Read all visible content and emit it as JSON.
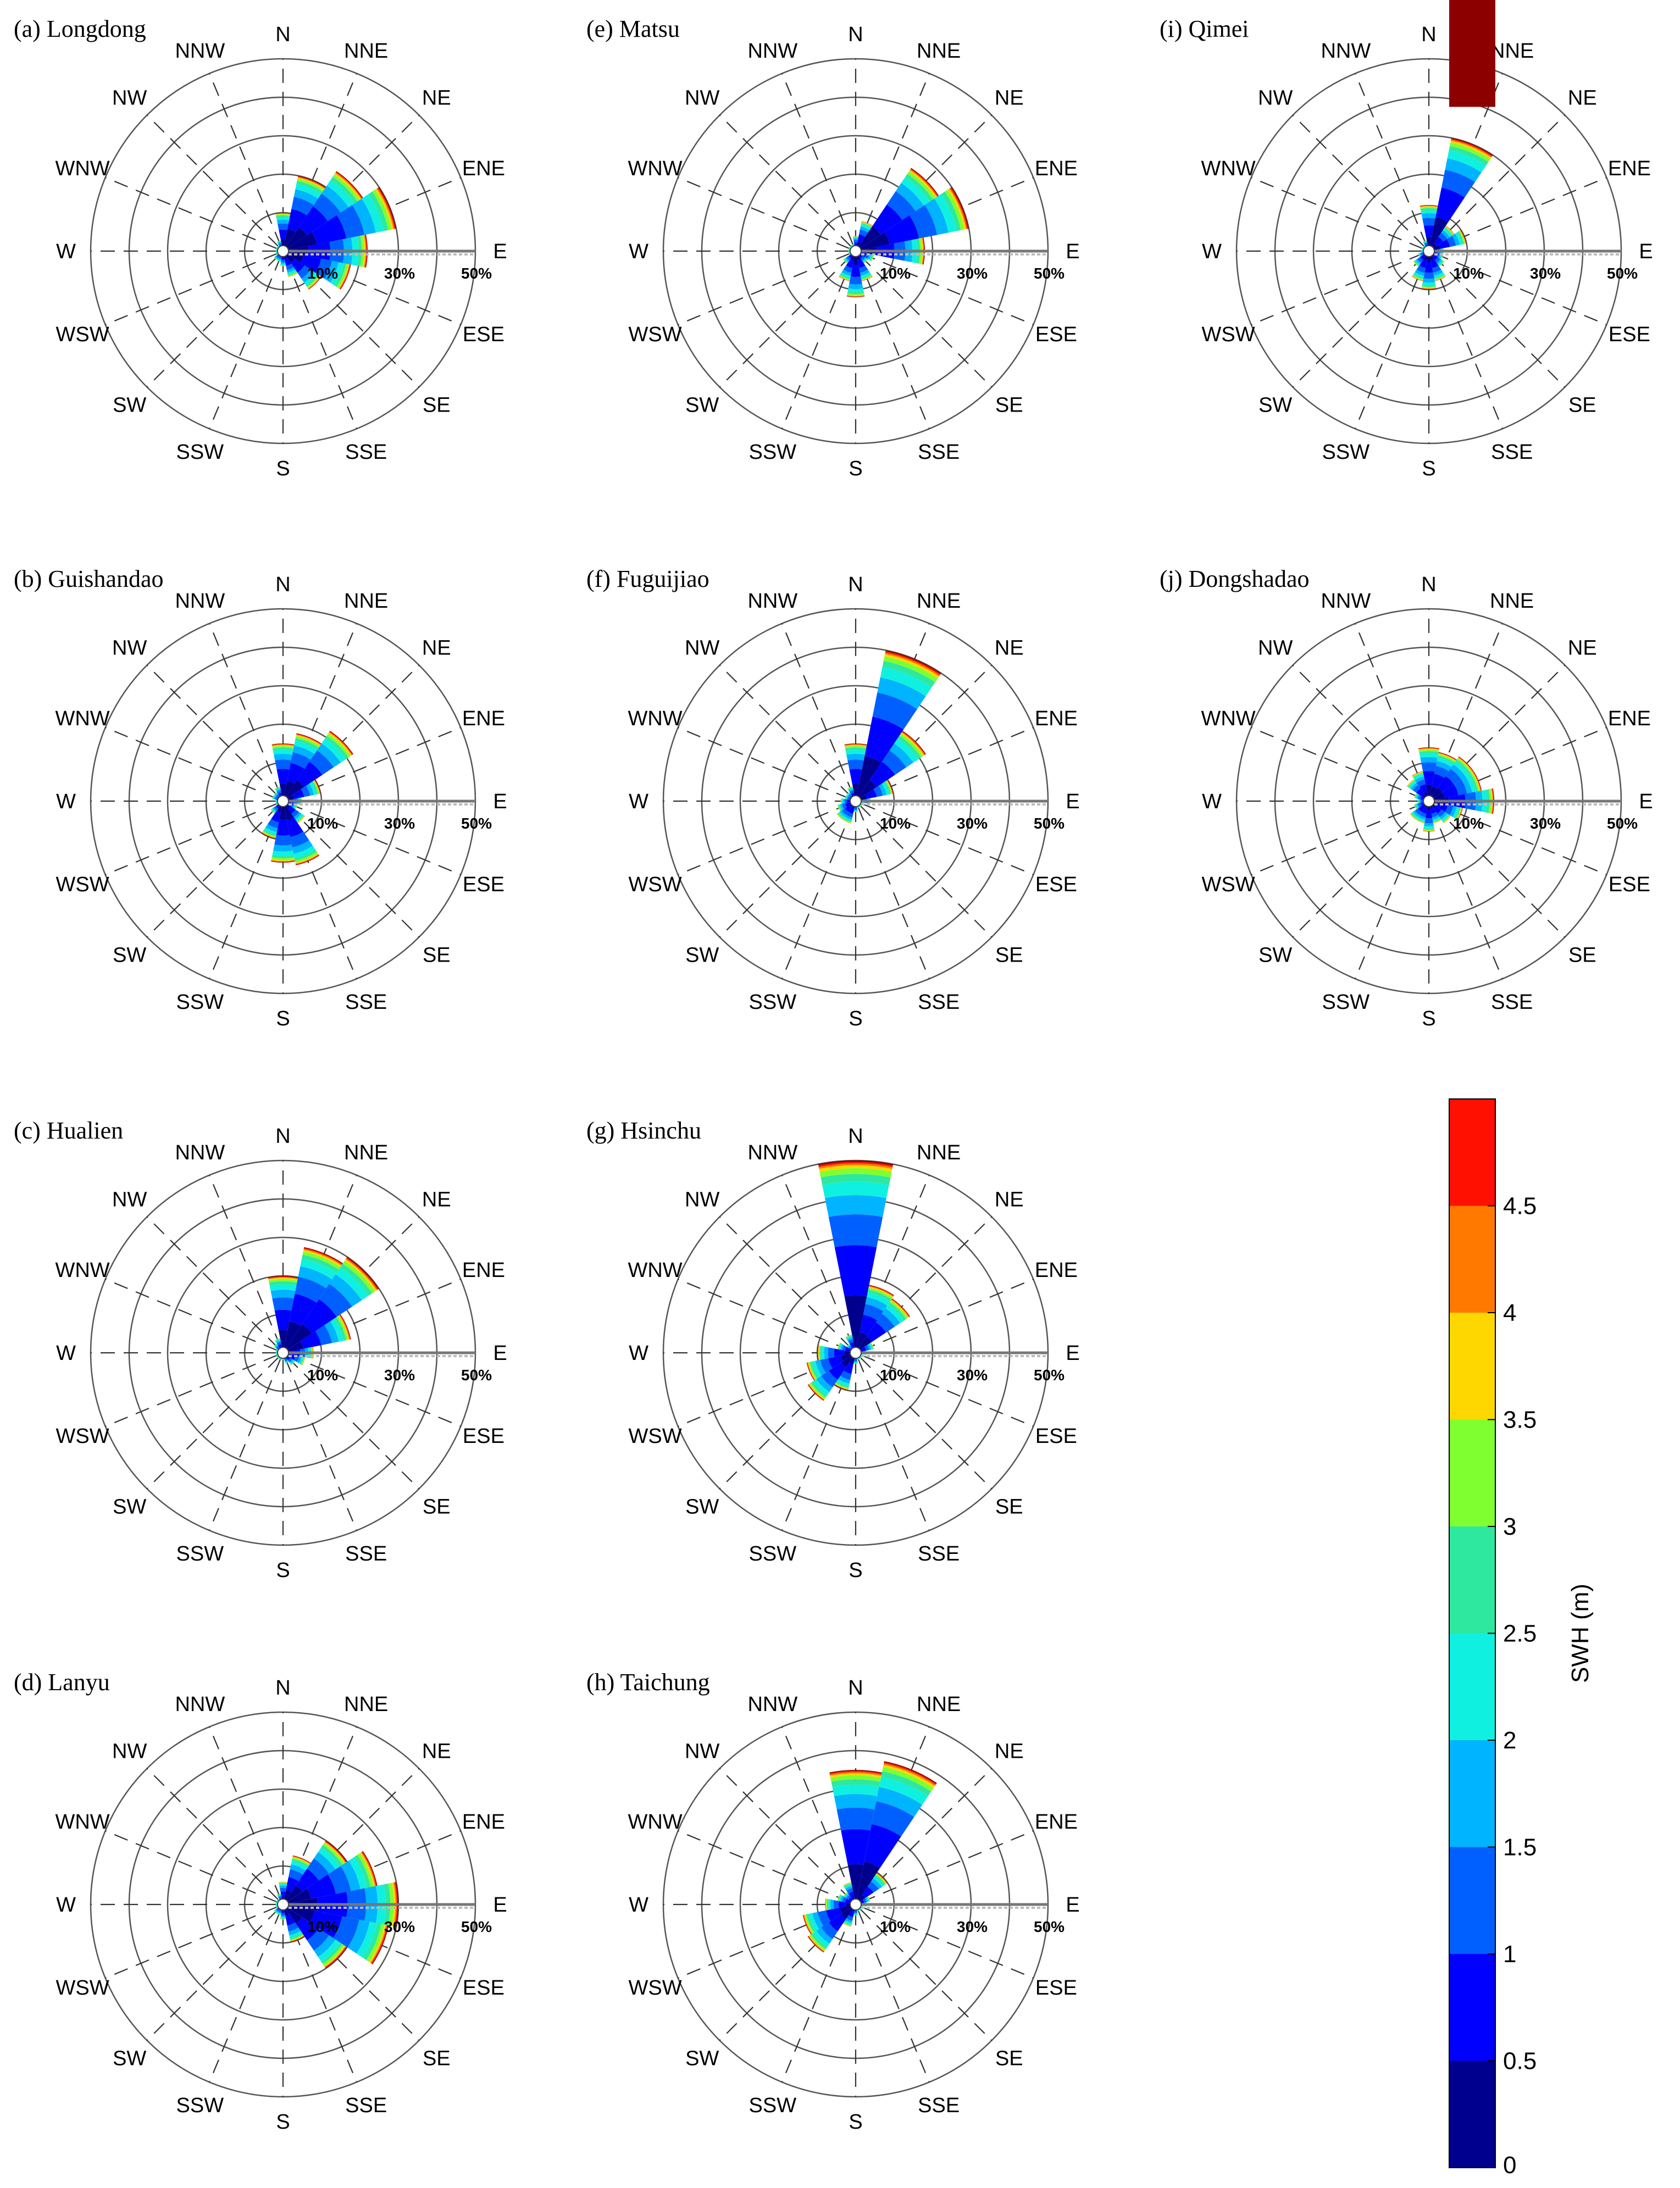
{
  "figure_type": "wave rose",
  "direction_labels": [
    "N",
    "NNE",
    "NE",
    "ENE",
    "E",
    "ESE",
    "SE",
    "SSE",
    "S",
    "SSW",
    "SW",
    "WSW",
    "W",
    "WNW",
    "NW",
    "NNW"
  ],
  "ring_labels": [
    "10%",
    "30%",
    "50%"
  ],
  "colorbar": {
    "label": "SWH (m)",
    "ticks": [
      "0",
      "0.5",
      "1",
      "1.5",
      "2",
      "2.5",
      "3",
      "3.5",
      "4",
      "4.5"
    ],
    "bins": [
      0,
      0.5,
      1,
      1.5,
      2,
      2.5,
      3,
      3.5,
      4,
      4.5,
      5
    ],
    "colors": [
      "#00008f",
      "#0000ff",
      "#0060ff",
      "#00b4ff",
      "#10f0e0",
      "#2ee8a0",
      "#80ff30",
      "#ffd700",
      "#ff7800",
      "#ff1000",
      "#8c0000"
    ]
  },
  "chart_data": [
    {
      "id": "a",
      "title": "(a) Longdong",
      "type": "rose",
      "rmax": 50,
      "sectors": [
        [
          0,
          10
        ],
        [
          1,
          20
        ],
        [
          2,
          25
        ],
        [
          3,
          30
        ],
        [
          4,
          22
        ],
        [
          5,
          18
        ],
        [
          6,
          12
        ],
        [
          7,
          7
        ],
        [
          8,
          4
        ],
        [
          9,
          3
        ],
        [
          10,
          3
        ],
        [
          11,
          2
        ],
        [
          12,
          2
        ],
        [
          13,
          2
        ],
        [
          14,
          2
        ],
        [
          15,
          3
        ]
      ]
    },
    {
      "id": "e",
      "title": "(e) Matsu",
      "type": "rose",
      "rmax": 50,
      "sectors": [
        [
          0,
          4
        ],
        [
          1,
          8
        ],
        [
          2,
          26
        ],
        [
          3,
          30
        ],
        [
          4,
          18
        ],
        [
          5,
          5
        ],
        [
          6,
          4
        ],
        [
          7,
          8
        ],
        [
          8,
          12
        ],
        [
          9,
          8
        ],
        [
          10,
          4
        ],
        [
          11,
          2
        ],
        [
          12,
          2
        ],
        [
          13,
          2
        ],
        [
          14,
          2
        ],
        [
          15,
          2
        ]
      ]
    },
    {
      "id": "i",
      "title": "(i) Qimei",
      "type": "rose",
      "rmax": 50,
      "sectors": [
        [
          0,
          12
        ],
        [
          1,
          30
        ],
        [
          2,
          8
        ],
        [
          3,
          10
        ],
        [
          4,
          4
        ],
        [
          5,
          4
        ],
        [
          6,
          5
        ],
        [
          7,
          8
        ],
        [
          8,
          10
        ],
        [
          9,
          8
        ],
        [
          10,
          5
        ],
        [
          11,
          3
        ],
        [
          12,
          2
        ],
        [
          13,
          2
        ],
        [
          14,
          2
        ],
        [
          15,
          3
        ]
      ]
    },
    {
      "id": "b",
      "title": "(b) Guishandao",
      "type": "rose",
      "rmax": 50,
      "sectors": [
        [
          0,
          15
        ],
        [
          1,
          18
        ],
        [
          2,
          22
        ],
        [
          3,
          10
        ],
        [
          4,
          5
        ],
        [
          5,
          4
        ],
        [
          6,
          7
        ],
        [
          7,
          17
        ],
        [
          8,
          16
        ],
        [
          9,
          10
        ],
        [
          10,
          4
        ],
        [
          11,
          2
        ],
        [
          12,
          2
        ],
        [
          13,
          3
        ],
        [
          14,
          3
        ],
        [
          15,
          4
        ]
      ]
    },
    {
      "id": "f",
      "title": "(f) Fuguijiao",
      "type": "rose",
      "rmax": 50,
      "sectors": [
        [
          0,
          15
        ],
        [
          1,
          40
        ],
        [
          2,
          22
        ],
        [
          3,
          10
        ],
        [
          4,
          4
        ],
        [
          5,
          2
        ],
        [
          6,
          2
        ],
        [
          7,
          2
        ],
        [
          8,
          3
        ],
        [
          9,
          6
        ],
        [
          10,
          6
        ],
        [
          11,
          5
        ],
        [
          12,
          4
        ],
        [
          13,
          3
        ],
        [
          14,
          3
        ],
        [
          15,
          4
        ]
      ]
    },
    {
      "id": "j",
      "title": "(j) Dongshadao",
      "type": "rose",
      "rmax": 50,
      "sectors": [
        [
          0,
          14
        ],
        [
          1,
          13
        ],
        [
          2,
          14
        ],
        [
          3,
          14
        ],
        [
          4,
          17
        ],
        [
          5,
          9
        ],
        [
          6,
          7
        ],
        [
          7,
          6
        ],
        [
          8,
          8
        ],
        [
          9,
          6
        ],
        [
          10,
          6
        ],
        [
          11,
          4
        ],
        [
          12,
          3
        ],
        [
          13,
          4
        ],
        [
          14,
          7
        ],
        [
          15,
          8
        ]
      ]
    },
    {
      "id": "c",
      "title": "(c) Hualien",
      "type": "rose",
      "rmax": 50,
      "sectors": [
        [
          0,
          20
        ],
        [
          1,
          28
        ],
        [
          2,
          30
        ],
        [
          3,
          18
        ],
        [
          4,
          8
        ],
        [
          5,
          6
        ],
        [
          6,
          4
        ],
        [
          7,
          3
        ],
        [
          8,
          2
        ],
        [
          9,
          2
        ],
        [
          10,
          2
        ],
        [
          11,
          2
        ],
        [
          12,
          2
        ],
        [
          13,
          2
        ],
        [
          14,
          3
        ],
        [
          15,
          4
        ]
      ]
    },
    {
      "id": "g",
      "title": "(g) Hsinchu",
      "type": "rose",
      "rmax": 50,
      "sectors": [
        [
          0,
          50
        ],
        [
          1,
          18
        ],
        [
          2,
          17
        ],
        [
          3,
          5
        ],
        [
          4,
          3
        ],
        [
          5,
          2
        ],
        [
          6,
          2
        ],
        [
          7,
          2
        ],
        [
          8,
          3
        ],
        [
          9,
          10
        ],
        [
          10,
          15
        ],
        [
          11,
          13
        ],
        [
          12,
          10
        ],
        [
          13,
          5
        ],
        [
          14,
          3
        ],
        [
          15,
          5
        ]
      ]
    },
    {
      "id": "d",
      "title": "(d) Lanyu",
      "type": "rose",
      "rmax": 50,
      "sectors": [
        [
          0,
          6
        ],
        [
          1,
          13
        ],
        [
          2,
          20
        ],
        [
          3,
          25
        ],
        [
          4,
          30
        ],
        [
          5,
          28
        ],
        [
          6,
          20
        ],
        [
          7,
          10
        ],
        [
          8,
          4
        ],
        [
          9,
          3
        ],
        [
          10,
          3
        ],
        [
          11,
          2
        ],
        [
          12,
          2
        ],
        [
          13,
          2
        ],
        [
          14,
          2
        ],
        [
          15,
          3
        ]
      ]
    },
    {
      "id": "h",
      "title": "(h) Taichung",
      "type": "rose",
      "rmax": 50,
      "sectors": [
        [
          0,
          35
        ],
        [
          1,
          38
        ],
        [
          2,
          10
        ],
        [
          3,
          4
        ],
        [
          4,
          3
        ],
        [
          5,
          2
        ],
        [
          6,
          2
        ],
        [
          7,
          2
        ],
        [
          8,
          3
        ],
        [
          9,
          6
        ],
        [
          10,
          15
        ],
        [
          11,
          14
        ],
        [
          12,
          8
        ],
        [
          13,
          5
        ],
        [
          14,
          4
        ],
        [
          15,
          6
        ]
      ]
    }
  ]
}
